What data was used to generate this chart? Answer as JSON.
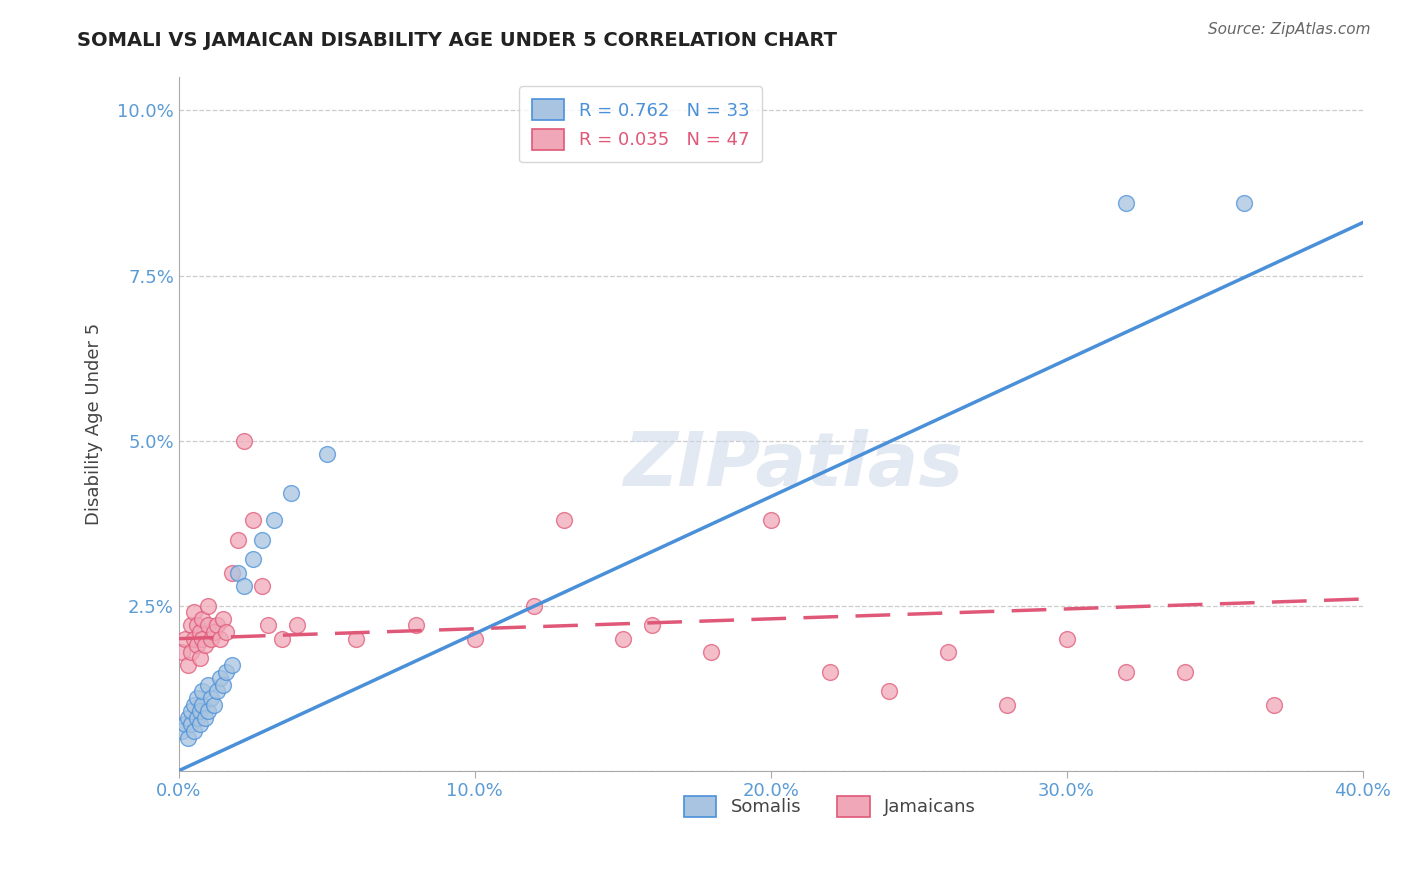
{
  "title": "SOMALI VS JAMAICAN DISABILITY AGE UNDER 5 CORRELATION CHART",
  "source": "Source: ZipAtlas.com",
  "ylabel": "Disability Age Under 5",
  "xlim": [
    0.0,
    0.4
  ],
  "ylim": [
    0.0,
    0.105
  ],
  "xticks": [
    0.0,
    0.1,
    0.2,
    0.3,
    0.4
  ],
  "yticks": [
    0.0,
    0.025,
    0.05,
    0.075,
    0.1
  ],
  "xticklabels": [
    "0.0%",
    "10.0%",
    "20.0%",
    "30.0%",
    "40.0%"
  ],
  "yticklabels": [
    "",
    "2.5%",
    "5.0%",
    "7.5%",
    "10.0%"
  ],
  "somali_R": 0.762,
  "somali_N": 33,
  "jamaican_R": 0.035,
  "jamaican_N": 47,
  "somali_color": "#a8c4e0",
  "somali_line_color": "#4a90d9",
  "jamaican_color": "#f0a8b8",
  "jamaican_line_color": "#e05878",
  "watermark": "ZIPatlas",
  "background_color": "#ffffff",
  "grid_color": "#cccccc",
  "somali_line_x": [
    0.0,
    0.4
  ],
  "somali_line_y": [
    0.0,
    0.083
  ],
  "jamaican_line_x": [
    0.0,
    0.4
  ],
  "jamaican_line_y": [
    0.02,
    0.026
  ],
  "somali_pts_x": [
    0.001,
    0.002,
    0.003,
    0.003,
    0.004,
    0.004,
    0.005,
    0.005,
    0.006,
    0.006,
    0.007,
    0.007,
    0.008,
    0.008,
    0.009,
    0.01,
    0.01,
    0.011,
    0.012,
    0.013,
    0.014,
    0.015,
    0.016,
    0.018,
    0.02,
    0.022,
    0.025,
    0.028,
    0.032,
    0.038,
    0.05,
    0.32,
    0.36
  ],
  "somali_pts_y": [
    0.006,
    0.007,
    0.005,
    0.008,
    0.007,
    0.009,
    0.006,
    0.01,
    0.008,
    0.011,
    0.007,
    0.009,
    0.01,
    0.012,
    0.008,
    0.009,
    0.013,
    0.011,
    0.01,
    0.012,
    0.014,
    0.013,
    0.015,
    0.016,
    0.03,
    0.028,
    0.032,
    0.035,
    0.038,
    0.042,
    0.048,
    0.086,
    0.086
  ],
  "jamaican_pts_x": [
    0.001,
    0.002,
    0.003,
    0.004,
    0.004,
    0.005,
    0.005,
    0.006,
    0.006,
    0.007,
    0.007,
    0.008,
    0.008,
    0.009,
    0.01,
    0.01,
    0.011,
    0.012,
    0.013,
    0.014,
    0.015,
    0.016,
    0.018,
    0.02,
    0.022,
    0.025,
    0.028,
    0.03,
    0.035,
    0.04,
    0.06,
    0.08,
    0.1,
    0.12,
    0.13,
    0.15,
    0.16,
    0.18,
    0.2,
    0.22,
    0.24,
    0.26,
    0.28,
    0.3,
    0.32,
    0.34,
    0.37
  ],
  "jamaican_pts_y": [
    0.018,
    0.02,
    0.016,
    0.022,
    0.018,
    0.02,
    0.024,
    0.019,
    0.022,
    0.017,
    0.021,
    0.02,
    0.023,
    0.019,
    0.022,
    0.025,
    0.02,
    0.021,
    0.022,
    0.02,
    0.023,
    0.021,
    0.03,
    0.035,
    0.05,
    0.038,
    0.028,
    0.022,
    0.02,
    0.022,
    0.02,
    0.022,
    0.02,
    0.025,
    0.038,
    0.02,
    0.022,
    0.018,
    0.038,
    0.015,
    0.012,
    0.018,
    0.01,
    0.02,
    0.015,
    0.015,
    0.01
  ]
}
